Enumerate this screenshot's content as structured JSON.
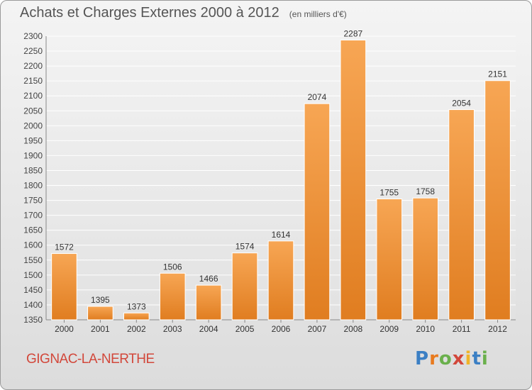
{
  "header": {
    "title": "Achats et Charges Externes 2000 à 2012",
    "subtitle": "(en milliers d'€)"
  },
  "footer": {
    "commune": "GIGNAC-LA-NERTHE",
    "logo_letters": [
      "P",
      "r",
      "o",
      "x",
      "i",
      "t",
      "i"
    ],
    "logo_colors": [
      "#3b7fc4",
      "#e87a1e",
      "#6ab04c",
      "#d2473a",
      "#f0b429",
      "#3b7fc4",
      "#6ab04c"
    ]
  },
  "colors": {
    "bar_light": "#f7a654",
    "bar_dark": "#e07d20",
    "title": "#555555",
    "commune": "#d2473a"
  },
  "chart_data": {
    "type": "bar",
    "categories": [
      "2000",
      "2001",
      "2002",
      "2003",
      "2004",
      "2005",
      "2006",
      "2007",
      "2008",
      "2009",
      "2010",
      "2011",
      "2012"
    ],
    "values": [
      1572,
      1395,
      1373,
      1506,
      1466,
      1574,
      1614,
      2074,
      2287,
      1755,
      1758,
      2054,
      2151
    ],
    "data_labels": [
      "1572",
      "1395",
      "1373",
      "1506",
      "1466",
      "1574",
      "1614",
      "2074",
      "2287",
      "1755",
      "1758",
      "2054",
      "2151"
    ],
    "title": "Achats et Charges Externes 2000 à 2012",
    "xlabel": "",
    "ylabel": "",
    "ylim": [
      1350,
      2300
    ],
    "yticks": [
      "1350",
      "1400",
      "1450",
      "1500",
      "1550",
      "1600",
      "1650",
      "1700",
      "1750",
      "1800",
      "1850",
      "1900",
      "1950",
      "2000",
      "2050",
      "2100",
      "2150",
      "2200",
      "2250",
      "2300"
    ],
    "grid": true,
    "legend": "none"
  }
}
